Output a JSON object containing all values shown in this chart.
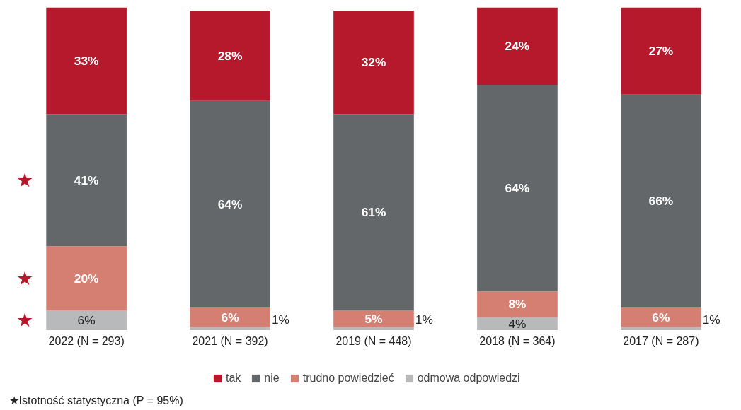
{
  "chart_data": {
    "type": "bar",
    "stacked": true,
    "ylim": [
      0,
      100
    ],
    "tick_labels": "x",
    "grid": false,
    "legend": "bottom",
    "categories": [
      "2022 (N = 293)",
      "2021 (N = 392)",
      "2019 (N = 448)",
      "2018 (N = 364)",
      "2017 (N = 287)"
    ],
    "series": [
      {
        "name": "odmowa odpowiedzi",
        "color": "#b7b9bb",
        "values": [
          6,
          1,
          1,
          4,
          1
        ],
        "value_labels": [
          "6%",
          "1%",
          "1%",
          "4%",
          "1%"
        ]
      },
      {
        "name": "trudno powiedzieć",
        "color": "#d47f72",
        "values": [
          20,
          6,
          5,
          8,
          6
        ],
        "value_labels": [
          "20%",
          "6%",
          "5%",
          "8%",
          "6%"
        ]
      },
      {
        "name": "nie",
        "color": "#636769",
        "values": [
          41,
          64,
          61,
          64,
          66
        ],
        "value_labels": [
          "41%",
          "64%",
          "61%",
          "64%",
          "66%"
        ]
      },
      {
        "name": "tak",
        "color": "#b5192b",
        "values": [
          33,
          28,
          32,
          24,
          27
        ],
        "value_labels": [
          "33%",
          "28%",
          "32%",
          "24%",
          "27%"
        ]
      }
    ],
    "annotations": [
      "★",
      "★",
      "★",
      "★Istotność statystyczna (P = 95%)"
    ]
  }
}
